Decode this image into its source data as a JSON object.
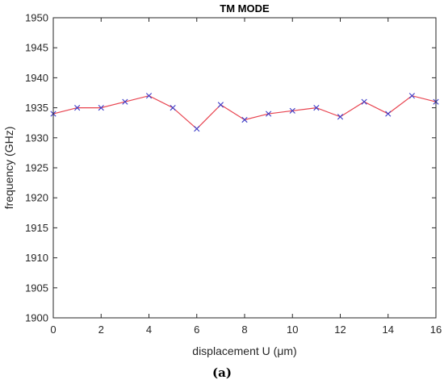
{
  "chart_data": {
    "type": "line",
    "title": "TM MODE",
    "xlabel": "displacement U (μm)",
    "ylabel": "frequency (GHz)",
    "xlim": [
      0,
      16
    ],
    "ylim": [
      1900,
      1950
    ],
    "xticks": [
      "0",
      "2",
      "4",
      "6",
      "8",
      "10",
      "12",
      "14",
      "16"
    ],
    "yticks": [
      "1900",
      "1905",
      "1910",
      "1915",
      "1920",
      "1925",
      "1930",
      "1935",
      "1940",
      "1945",
      "1950"
    ],
    "grid": false,
    "series": [
      {
        "line_color": "#e8434f",
        "marker": "x",
        "marker_color": "#3a3ac8",
        "x": [
          0,
          1,
          2,
          3,
          4,
          5,
          6,
          7,
          8,
          9,
          10,
          11,
          12,
          13,
          14,
          15,
          16
        ],
        "y": [
          1934,
          1935,
          1935,
          1936,
          1937,
          1935,
          1931.5,
          1935.5,
          1933,
          1934,
          1934.5,
          1935,
          1933.5,
          1936,
          1934,
          1937,
          1936
        ]
      }
    ]
  },
  "caption": "(a)"
}
